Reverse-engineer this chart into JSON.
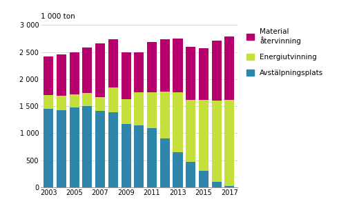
{
  "years": [
    2003,
    2004,
    2005,
    2006,
    2007,
    2008,
    2009,
    2010,
    2011,
    2012,
    2013,
    2014,
    2015,
    2016,
    2017
  ],
  "avstjalpningsplats": [
    1450,
    1420,
    1480,
    1500,
    1410,
    1390,
    1170,
    1140,
    1090,
    900,
    650,
    470,
    300,
    95,
    20
  ],
  "energiutvinning": [
    260,
    270,
    240,
    240,
    260,
    460,
    460,
    620,
    670,
    870,
    1110,
    1140,
    1310,
    1510,
    1600
  ],
  "materialatervinning": [
    710,
    760,
    780,
    840,
    990,
    880,
    870,
    740,
    930,
    960,
    990,
    980,
    960,
    1110,
    1170
  ],
  "color_avstjalpningsplats": "#2e86ab",
  "color_energiutvinning": "#c5e03a",
  "color_materialatervinning": "#b5006e",
  "ylabel": "1 000 ton",
  "ylim": [
    0,
    3000
  ],
  "yticks": [
    0,
    500,
    1000,
    1500,
    2000,
    2500,
    3000
  ],
  "legend_material": "Material\nåtervinning",
  "legend_energi": "Energiutvinning",
  "legend_avst": "Avstälpningsplats",
  "bar_width": 0.75,
  "background_color": "#ffffff"
}
